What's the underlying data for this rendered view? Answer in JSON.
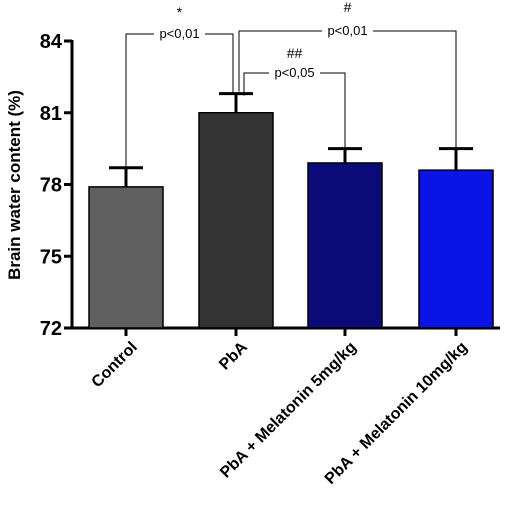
{
  "chart_data": {
    "type": "bar",
    "title": "",
    "xlabel": "",
    "ylabel": "Brain water content (%)",
    "ylim": [
      72,
      84
    ],
    "yticks": [
      72,
      75,
      78,
      81,
      84
    ],
    "categories": [
      "Control",
      "PbA",
      "PbA + Melatonin 5mg/kg",
      "PbA + Melatonin 10mg/kg"
    ],
    "values": [
      77.9,
      81.0,
      78.9,
      78.6
    ],
    "error": [
      0.8,
      0.8,
      0.6,
      0.9
    ],
    "colors": [
      "#5f5f5f",
      "#333333",
      "#0b0b7a",
      "#0a14e6"
    ],
    "grid": false,
    "legend": "none",
    "significance": [
      {
        "from": 0,
        "to": 1,
        "mark": "*",
        "label": "p<0,01"
      },
      {
        "from": 1,
        "to": 2,
        "mark": "##",
        "label": "p<0,05"
      },
      {
        "from": 1,
        "to": 3,
        "mark": "#",
        "label": "p<0,01"
      }
    ]
  }
}
